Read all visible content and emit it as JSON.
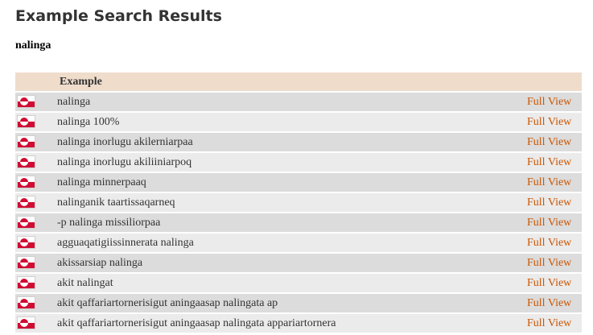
{
  "page": {
    "title": "Example Search Results",
    "query": "nalinga"
  },
  "table": {
    "headers": {
      "flag": "",
      "example": "Example",
      "link": ""
    },
    "icon": "greenland-flag-icon",
    "link_color": "#cc5500",
    "rows": [
      {
        "example": "nalinga",
        "link": "Full View"
      },
      {
        "example": "nalinga 100%",
        "link": "Full View"
      },
      {
        "example": "nalinga inorlugu akilerniarpaa",
        "link": "Full View"
      },
      {
        "example": "nalinga inorlugu akiliiniarpoq",
        "link": "Full View"
      },
      {
        "example": "nalinga minnerpaaq",
        "link": "Full View"
      },
      {
        "example": "nalinganik taartissaqarneq",
        "link": "Full View"
      },
      {
        "example": "-p nalinga missiliorpaa",
        "link": "Full View"
      },
      {
        "example": "agguaqatigiissinnerata nalinga",
        "link": "Full View"
      },
      {
        "example": "akissarsiap nalinga",
        "link": "Full View"
      },
      {
        "example": "akit nalingat",
        "link": "Full View"
      },
      {
        "example": "akit qaffariartornerisigut aningaasap nalingata ap",
        "link": "Full View"
      },
      {
        "example": "akit qaffariartornerisigut aningaasap nalingata appariartornera",
        "link": "Full View"
      }
    ]
  }
}
